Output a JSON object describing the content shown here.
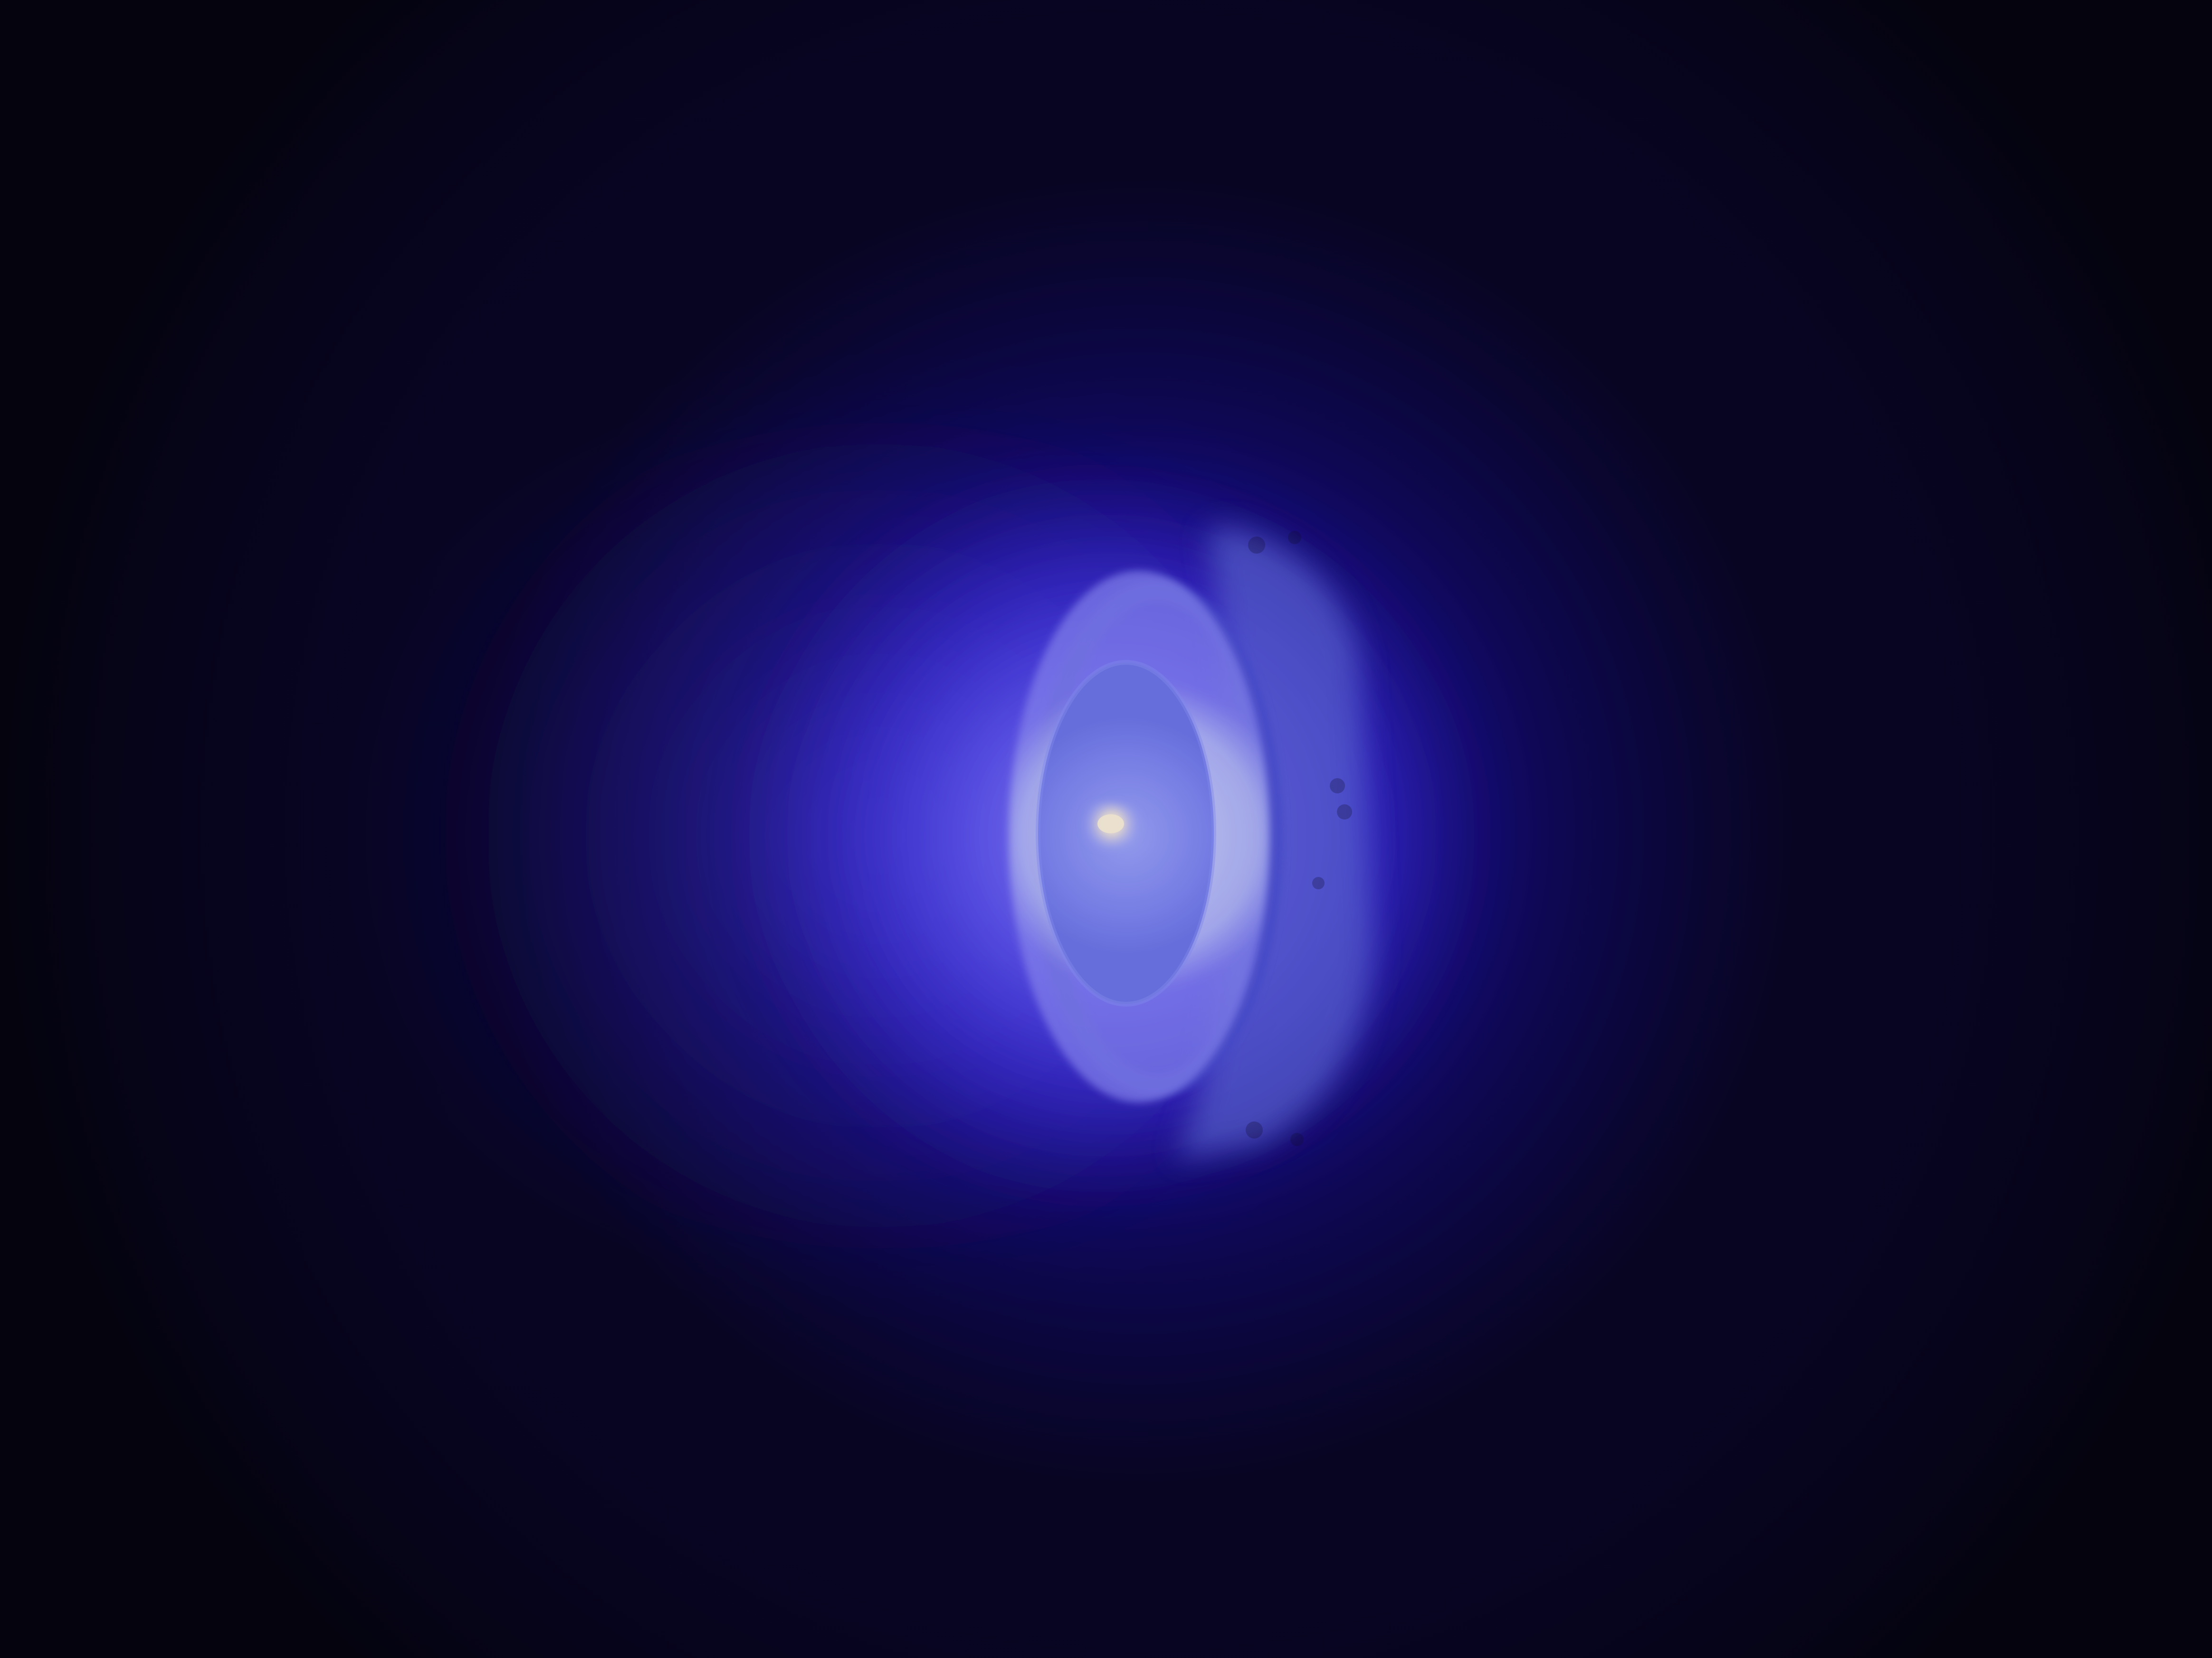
{
  "image": {
    "subject": "hall-thruster-plasma-glow",
    "background_color": "#050410",
    "haze_color": "#1e10a8",
    "glow_color": "#4a3cff",
    "bright_glow_color": "#8a82ff",
    "ring_color": "#c7ccff",
    "inner_disc_color": "#7d85f5",
    "hot_spot_color": "#fff1d8",
    "body_color": "#5e68dc"
  }
}
